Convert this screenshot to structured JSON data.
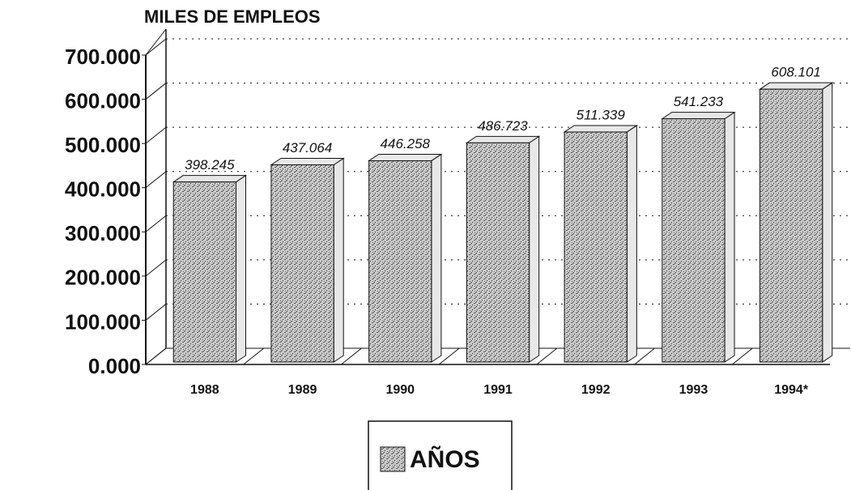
{
  "chart_data": {
    "type": "bar",
    "title": "MILES DE EMPLEOS",
    "categories": [
      "1988",
      "1989",
      "1990",
      "1991",
      "1992",
      "1993",
      "1994*"
    ],
    "series": [
      {
        "name": "AÑOS",
        "color": "#b8b8b8",
        "values": [
          398245,
          437064,
          446258,
          486723,
          511339,
          541233,
          608101
        ],
        "value_labels": [
          "398.245",
          "437.064",
          "446.258",
          "486.723",
          "511.339",
          "541.233",
          "608.101"
        ]
      }
    ],
    "ylim": [
      0,
      700000
    ],
    "yticks": [
      {
        "value": 0,
        "label": "0.000"
      },
      {
        "value": 100000,
        "label": "100.000"
      },
      {
        "value": 200000,
        "label": "200.000"
      },
      {
        "value": 300000,
        "label": "300.000"
      },
      {
        "value": 400000,
        "label": "400.000"
      },
      {
        "value": 500000,
        "label": "500.000"
      },
      {
        "value": 600000,
        "label": "600.000"
      },
      {
        "value": 700000,
        "label": "700.000"
      }
    ],
    "grid": true,
    "legend": "bottom"
  }
}
